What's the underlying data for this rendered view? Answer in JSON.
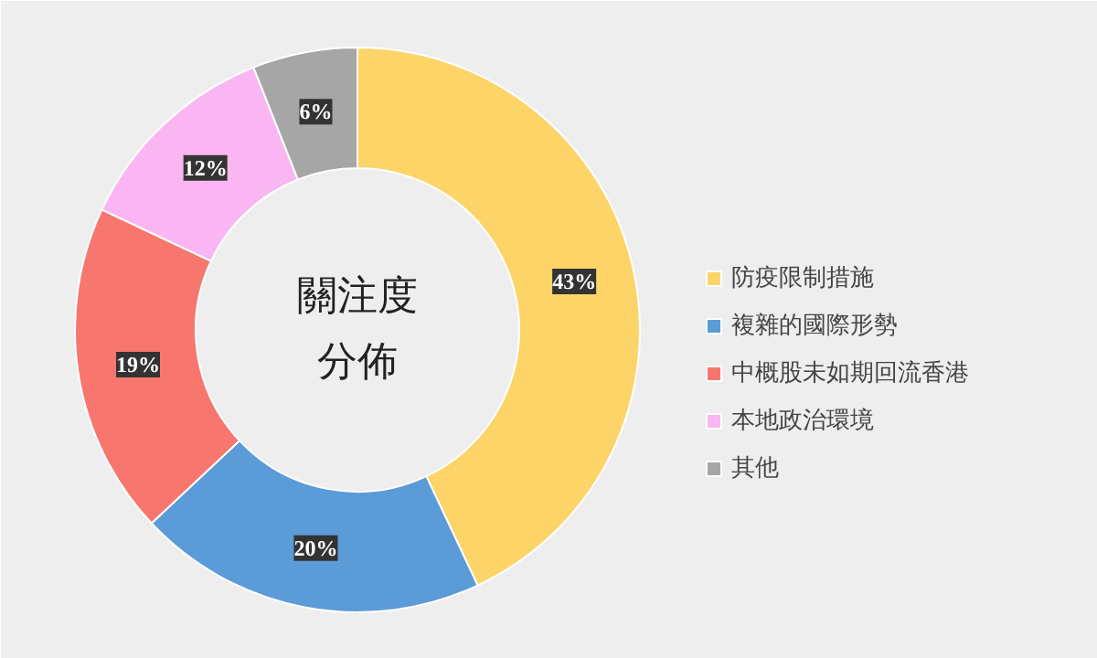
{
  "chart_data": {
    "type": "donut",
    "title": "關注度分佈",
    "categories": [
      "防疫限制措施",
      "複雜的國際形勢",
      "中概股未如期回流香港",
      "本地政治環境",
      "其他"
    ],
    "values": [
      43,
      20,
      19,
      12,
      6
    ],
    "colors": [
      "#fdd468",
      "#5b9bd8",
      "#f7776f",
      "#f9b6f2",
      "#a6a6a6"
    ],
    "value_labels": [
      "43%",
      "20%",
      "19%",
      "12%",
      "6%"
    ],
    "legend": "right"
  }
}
